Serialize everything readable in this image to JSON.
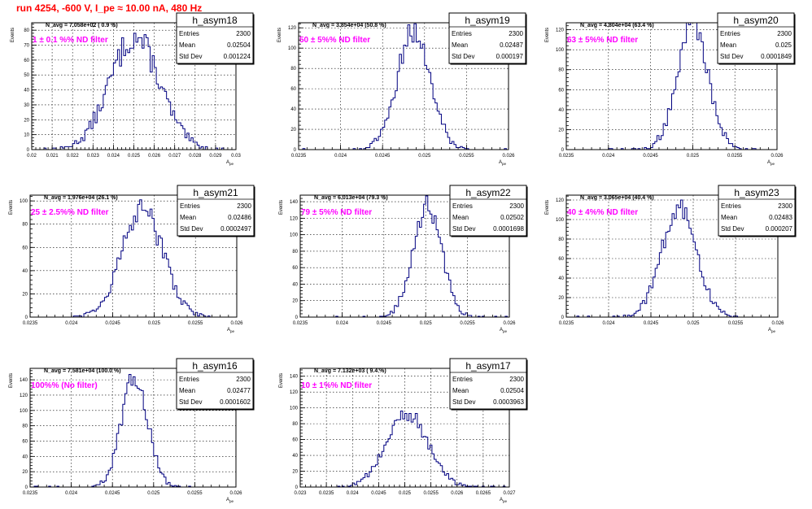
{
  "page": {
    "run_title": "run 4254,  -600 V, I_pe ≈ 10.00 nA, 480 Hz"
  },
  "colors": {
    "hist_line": "#000080",
    "annotation": "#ff00ff",
    "title_red": "#ff0000",
    "grid": "#000000",
    "frame": "#000000"
  },
  "stats_labels": {
    "entries": "Entries",
    "mean": "Mean",
    "std": "Std Dev"
  },
  "axis_labels": {
    "y": "Events",
    "x_main": "A",
    "x_sub": "pe"
  },
  "chart_data": [
    {
      "type": "bar",
      "name": "h_asym18",
      "navg": "N_avg = 7.058e+02 ( 0.9 %)",
      "filter": "1 ± 0.1 %% ND filter",
      "entries": "2300",
      "mean_value": "0.02504",
      "std_value": "0.001224",
      "entries_num": 2300,
      "mean": 0.02504,
      "std": 0.001224,
      "xlim": [
        0.02,
        0.03
      ],
      "ylim": [
        0,
        85
      ],
      "xticks": [
        0.02,
        0.021,
        0.022,
        0.023,
        0.024,
        0.025,
        0.026,
        0.027,
        0.028,
        0.029,
        0.03
      ],
      "xtick_labels": [
        "0.02",
        "0.021",
        "0.022",
        "0.023",
        "0.024",
        "0.025",
        "0.026",
        "0.027",
        "0.028",
        "0.029",
        "0.03"
      ],
      "yticks": [
        0,
        10,
        20,
        30,
        40,
        50,
        60,
        70,
        80
      ],
      "ytick_labels": [
        "0",
        "10",
        "20",
        "30",
        "40",
        "50",
        "60",
        "70",
        "80"
      ],
      "binning": [
        100,
        0.02,
        0.03
      ]
    },
    {
      "type": "bar",
      "name": "h_asym19",
      "navg": "N_avg = 3.854e+04 (50.8 %)",
      "filter": "50 ± 5%% ND filter",
      "entries": "2300",
      "mean_value": "0.02487",
      "std_value": "0.000197",
      "entries_num": 2300,
      "mean": 0.02487,
      "std": 0.000197,
      "xlim": [
        0.0235,
        0.026
      ],
      "ylim": [
        0,
        125
      ],
      "xticks": [
        0.0235,
        0.024,
        0.0245,
        0.025,
        0.0255,
        0.026
      ],
      "xtick_labels": [
        "0.0235",
        "0.024",
        "0.0245",
        "0.025",
        "0.0255",
        "0.026"
      ],
      "yticks": [
        0,
        20,
        40,
        60,
        80,
        100,
        120
      ],
      "ytick_labels": [
        "0",
        "20",
        "40",
        "60",
        "80",
        "100",
        "120"
      ],
      "binning": [
        100,
        0.0235,
        0.026
      ]
    },
    {
      "type": "bar",
      "name": "h_asym20",
      "navg": "N_avg = 4.804e+04 (63.4 %)",
      "filter": "63 ± 5%% ND filter",
      "entries": "2300",
      "mean_value": "0.025",
      "std_value": "0.0001849",
      "entries_num": 2300,
      "mean": 0.025,
      "std": 0.0001849,
      "xlim": [
        0.0235,
        0.026
      ],
      "ylim": [
        0,
        127
      ],
      "xticks": [
        0.0235,
        0.024,
        0.0245,
        0.025,
        0.0255,
        0.026
      ],
      "xtick_labels": [
        "0.0235",
        "0.024",
        "0.0245",
        "0.025",
        "0.0255",
        "0.026"
      ],
      "yticks": [
        0,
        20,
        40,
        60,
        80,
        100,
        120
      ],
      "ytick_labels": [
        "0",
        "20",
        "40",
        "60",
        "80",
        "100",
        "120"
      ],
      "binning": [
        100,
        0.0235,
        0.026
      ]
    },
    {
      "type": "bar",
      "name": "h_asym21",
      "navg": "N_avg = 1.976e+04 (26.1 %)",
      "filter": "25 ± 2.5%% ND filter",
      "entries": "2300",
      "mean_value": "0.02486",
      "std_value": "0.0002497",
      "entries_num": 2300,
      "mean": 0.02486,
      "std": 0.0002497,
      "xlim": [
        0.0235,
        0.026
      ],
      "ylim": [
        0,
        105
      ],
      "xticks": [
        0.0235,
        0.024,
        0.0245,
        0.025,
        0.0255,
        0.026
      ],
      "xtick_labels": [
        "0.0235",
        "0.024",
        "0.0245",
        "0.025",
        "0.0255",
        "0.026"
      ],
      "yticks": [
        0,
        20,
        40,
        60,
        80,
        100
      ],
      "ytick_labels": [
        "0",
        "20",
        "40",
        "60",
        "80",
        "100"
      ],
      "binning": [
        100,
        0.0235,
        0.026
      ]
    },
    {
      "type": "bar",
      "name": "h_asym22",
      "navg": "N_avg = 6.013e+04 (79.3 %)",
      "filter": "79 ± 5%% ND filter",
      "entries": "2300",
      "mean_value": "0.02502",
      "std_value": "0.0001698",
      "entries_num": 2300,
      "mean": 0.02502,
      "std": 0.0001698,
      "xlim": [
        0.0235,
        0.026
      ],
      "ylim": [
        0,
        148
      ],
      "xticks": [
        0.0235,
        0.024,
        0.0245,
        0.025,
        0.0255,
        0.026
      ],
      "xtick_labels": [
        "0.0235",
        "0.024",
        "0.0245",
        "0.025",
        "0.0255",
        "0.026"
      ],
      "yticks": [
        0,
        20,
        40,
        60,
        80,
        100,
        120,
        140
      ],
      "ytick_labels": [
        "0",
        "20",
        "40",
        "60",
        "80",
        "100",
        "120",
        "140"
      ],
      "binning": [
        100,
        0.0235,
        0.026
      ]
    },
    {
      "type": "bar",
      "name": "h_asym23",
      "navg": "N_avg = 3.065e+04 (40.4 %)",
      "filter": "40 ± 4%% ND filter",
      "entries": "2300",
      "mean_value": "0.02483",
      "std_value": "0.000207",
      "entries_num": 2300,
      "mean": 0.02483,
      "std": 0.000207,
      "xlim": [
        0.0235,
        0.026
      ],
      "ylim": [
        0,
        125
      ],
      "xticks": [
        0.0235,
        0.024,
        0.0245,
        0.025,
        0.0255,
        0.026
      ],
      "xtick_labels": [
        "0.0235",
        "0.024",
        "0.0245",
        "0.025",
        "0.0255",
        "0.026"
      ],
      "yticks": [
        0,
        20,
        40,
        60,
        80,
        100,
        120
      ],
      "ytick_labels": [
        "0",
        "20",
        "40",
        "60",
        "80",
        "100",
        "120"
      ],
      "binning": [
        100,
        0.0235,
        0.026
      ]
    },
    {
      "type": "bar",
      "name": "h_asym16",
      "navg": "N_avg = 7.581e+04 (100.0 %)",
      "filter": "100%% (No filter)",
      "entries": "2300",
      "mean_value": "0.02477",
      "std_value": "0.0001602",
      "entries_num": 2300,
      "mean": 0.02477,
      "std": 0.0001602,
      "xlim": [
        0.0235,
        0.026
      ],
      "ylim": [
        0,
        155
      ],
      "xticks": [
        0.0235,
        0.024,
        0.0245,
        0.025,
        0.0255,
        0.026
      ],
      "xtick_labels": [
        "0.0235",
        "0.024",
        "0.0245",
        "0.025",
        "0.0255",
        "0.026"
      ],
      "yticks": [
        0,
        20,
        40,
        60,
        80,
        100,
        120,
        140
      ],
      "ytick_labels": [
        "0",
        "20",
        "40",
        "60",
        "80",
        "100",
        "120",
        "140"
      ],
      "binning": [
        100,
        0.0235,
        0.026
      ]
    },
    {
      "type": "bar",
      "name": "h_asym17",
      "navg": "N_avg = 7.132e+03 ( 9.4 %)",
      "filter": "10 ± 1%% ND filter",
      "entries": "2300",
      "mean_value": "0.02504",
      "std_value": "0.0003963",
      "entries_num": 2300,
      "mean": 0.02504,
      "std": 0.0003963,
      "xlim": [
        0.023,
        0.027
      ],
      "ylim": [
        0,
        150
      ],
      "xticks": [
        0.023,
        0.0235,
        0.024,
        0.0245,
        0.025,
        0.0255,
        0.026,
        0.0265,
        0.027
      ],
      "xtick_labels": [
        "0.023",
        "0.0235",
        "0.024",
        "0.0245",
        "0.025",
        "0.0255",
        "0.026",
        "0.0265",
        "0.027"
      ],
      "yticks": [
        0,
        20,
        40,
        60,
        80,
        100,
        120,
        140
      ],
      "ytick_labels": [
        "0",
        "20",
        "40",
        "60",
        "80",
        "100",
        "120",
        "140"
      ],
      "binning": [
        100,
        0.023,
        0.027
      ]
    }
  ]
}
